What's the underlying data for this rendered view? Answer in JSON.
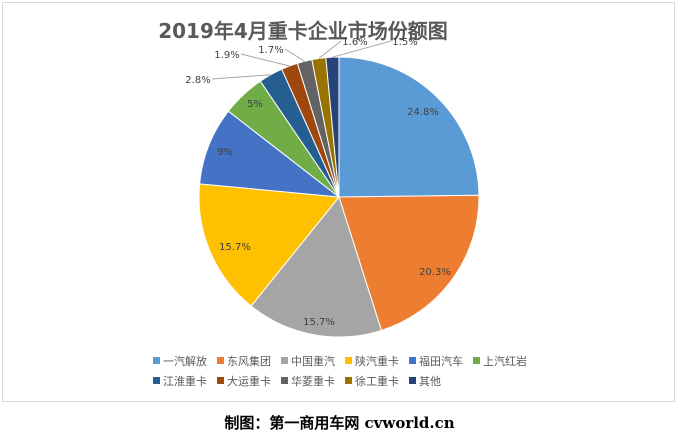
{
  "chart_data": {
    "type": "pie",
    "title": "2019年4月重卡企业市场份额图",
    "categories": [
      "一汽解放",
      "东风集团",
      "中国重汽",
      "陕汽重卡",
      "福田汽车",
      "上汽红岩",
      "江淮重卡",
      "大运重卡",
      "华菱重卡",
      "徐工重卡",
      "其他"
    ],
    "values": [
      24.8,
      20.3,
      15.7,
      15.7,
      9,
      5,
      2.8,
      1.9,
      1.7,
      1.6,
      1.5
    ],
    "value_labels": [
      "24.8%",
      "20.3%",
      "15.7%",
      "15.7%",
      "9%",
      "5%",
      "2.8%",
      "1.9%",
      "1.7%",
      "1.6%",
      "1.5%"
    ],
    "colors": [
      "#5b9bd5",
      "#ed7d31",
      "#a5a5a5",
      "#ffc000",
      "#4472c4",
      "#70ad47",
      "#255e91",
      "#9e480e",
      "#636363",
      "#997300",
      "#264478"
    ],
    "legend_position": "bottom",
    "start_angle": "12 o'clock",
    "direction": "clockwise"
  },
  "credit": "制图：第一商用车网 cvworld.cn"
}
